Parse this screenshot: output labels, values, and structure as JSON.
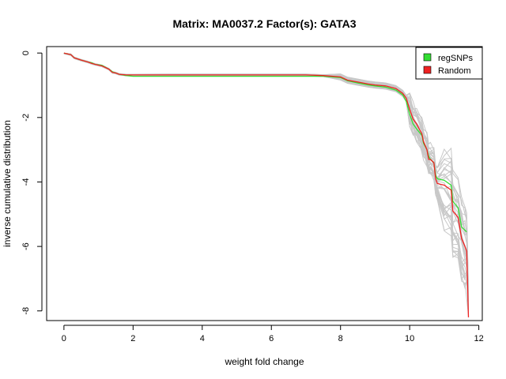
{
  "chart_data": {
    "type": "line",
    "title": "Matrix: MA0037.2 Factor(s): GATA3",
    "xlabel": "weight fold change",
    "ylabel": "inverse cumulative distribution",
    "xlim": [
      -0.5,
      12.1
    ],
    "ylim": [
      -8.3,
      0.2
    ],
    "x_ticks": [
      0,
      2,
      4,
      6,
      8,
      10,
      12
    ],
    "y_ticks": [
      0,
      -2,
      -4,
      -6,
      -8
    ],
    "x_tick_labels": [
      "0",
      "2",
      "4",
      "6",
      "8",
      "10",
      "12"
    ],
    "y_tick_labels": [
      "0",
      "-2",
      "-4",
      "-6",
      "-8"
    ],
    "legend_position": "top-right",
    "legend": [
      {
        "label": "regSNPs",
        "color": "#33dd33"
      },
      {
        "label": "Random",
        "color": "#ee2222"
      }
    ],
    "series": [
      {
        "color": "#33dd33",
        "x": [
          0,
          0.2,
          0.3,
          0.5,
          0.7,
          0.8,
          0.9,
          1.1,
          1.3,
          1.4,
          1.5,
          1.6,
          1.8,
          2.0,
          3.0,
          4.0,
          5.0,
          6.0,
          7.0,
          7.5,
          8.0,
          8.2,
          8.5,
          8.8,
          9.0,
          9.3,
          9.6,
          9.8,
          9.9,
          10.0,
          10.1,
          10.2,
          10.35,
          10.4,
          10.5,
          10.55,
          10.6,
          10.7,
          10.75,
          10.8,
          11.0,
          11.2,
          11.25,
          11.4,
          11.5,
          11.6,
          11.65
        ],
        "y": [
          0,
          -0.05,
          -0.15,
          -0.22,
          -0.28,
          -0.3,
          -0.35,
          -0.38,
          -0.5,
          -0.58,
          -0.62,
          -0.66,
          -0.7,
          -0.72,
          -0.72,
          -0.72,
          -0.72,
          -0.72,
          -0.72,
          -0.72,
          -0.76,
          -0.86,
          -0.93,
          -0.99,
          -1.02,
          -1.06,
          -1.15,
          -1.3,
          -1.5,
          -1.9,
          -2.2,
          -2.35,
          -2.55,
          -2.8,
          -3.0,
          -3.2,
          -3.3,
          -3.4,
          -3.8,
          -3.9,
          -3.95,
          -4.1,
          -4.6,
          -4.8,
          -5.4,
          -5.5,
          -5.55
        ]
      },
      {
        "color": "#ee2222",
        "x": [
          0,
          0.2,
          0.3,
          0.5,
          0.7,
          0.8,
          0.9,
          1.1,
          1.3,
          1.4,
          1.5,
          1.6,
          1.8,
          2.0,
          3.0,
          4.0,
          5.0,
          6.0,
          7.0,
          7.5,
          8.0,
          8.2,
          8.5,
          8.8,
          9.0,
          9.3,
          9.6,
          9.8,
          9.9,
          10.0,
          10.1,
          10.2,
          10.35,
          10.4,
          10.5,
          10.55,
          10.6,
          10.7,
          10.75,
          10.8,
          11.0,
          11.2,
          11.25,
          11.4,
          11.5,
          11.6,
          11.65,
          11.7
        ],
        "y": [
          0,
          -0.05,
          -0.15,
          -0.22,
          -0.28,
          -0.32,
          -0.35,
          -0.4,
          -0.5,
          -0.6,
          -0.62,
          -0.66,
          -0.68,
          -0.68,
          -0.68,
          -0.68,
          -0.68,
          -0.68,
          -0.68,
          -0.7,
          -0.74,
          -0.84,
          -0.9,
          -0.96,
          -0.99,
          -1.02,
          -1.1,
          -1.25,
          -1.4,
          -1.75,
          -2.05,
          -2.2,
          -2.5,
          -2.75,
          -3.0,
          -3.3,
          -3.3,
          -3.4,
          -3.9,
          -4.05,
          -4.1,
          -4.25,
          -4.9,
          -5.1,
          -5.75,
          -6.0,
          -6.15,
          -8.2
        ]
      }
    ]
  }
}
